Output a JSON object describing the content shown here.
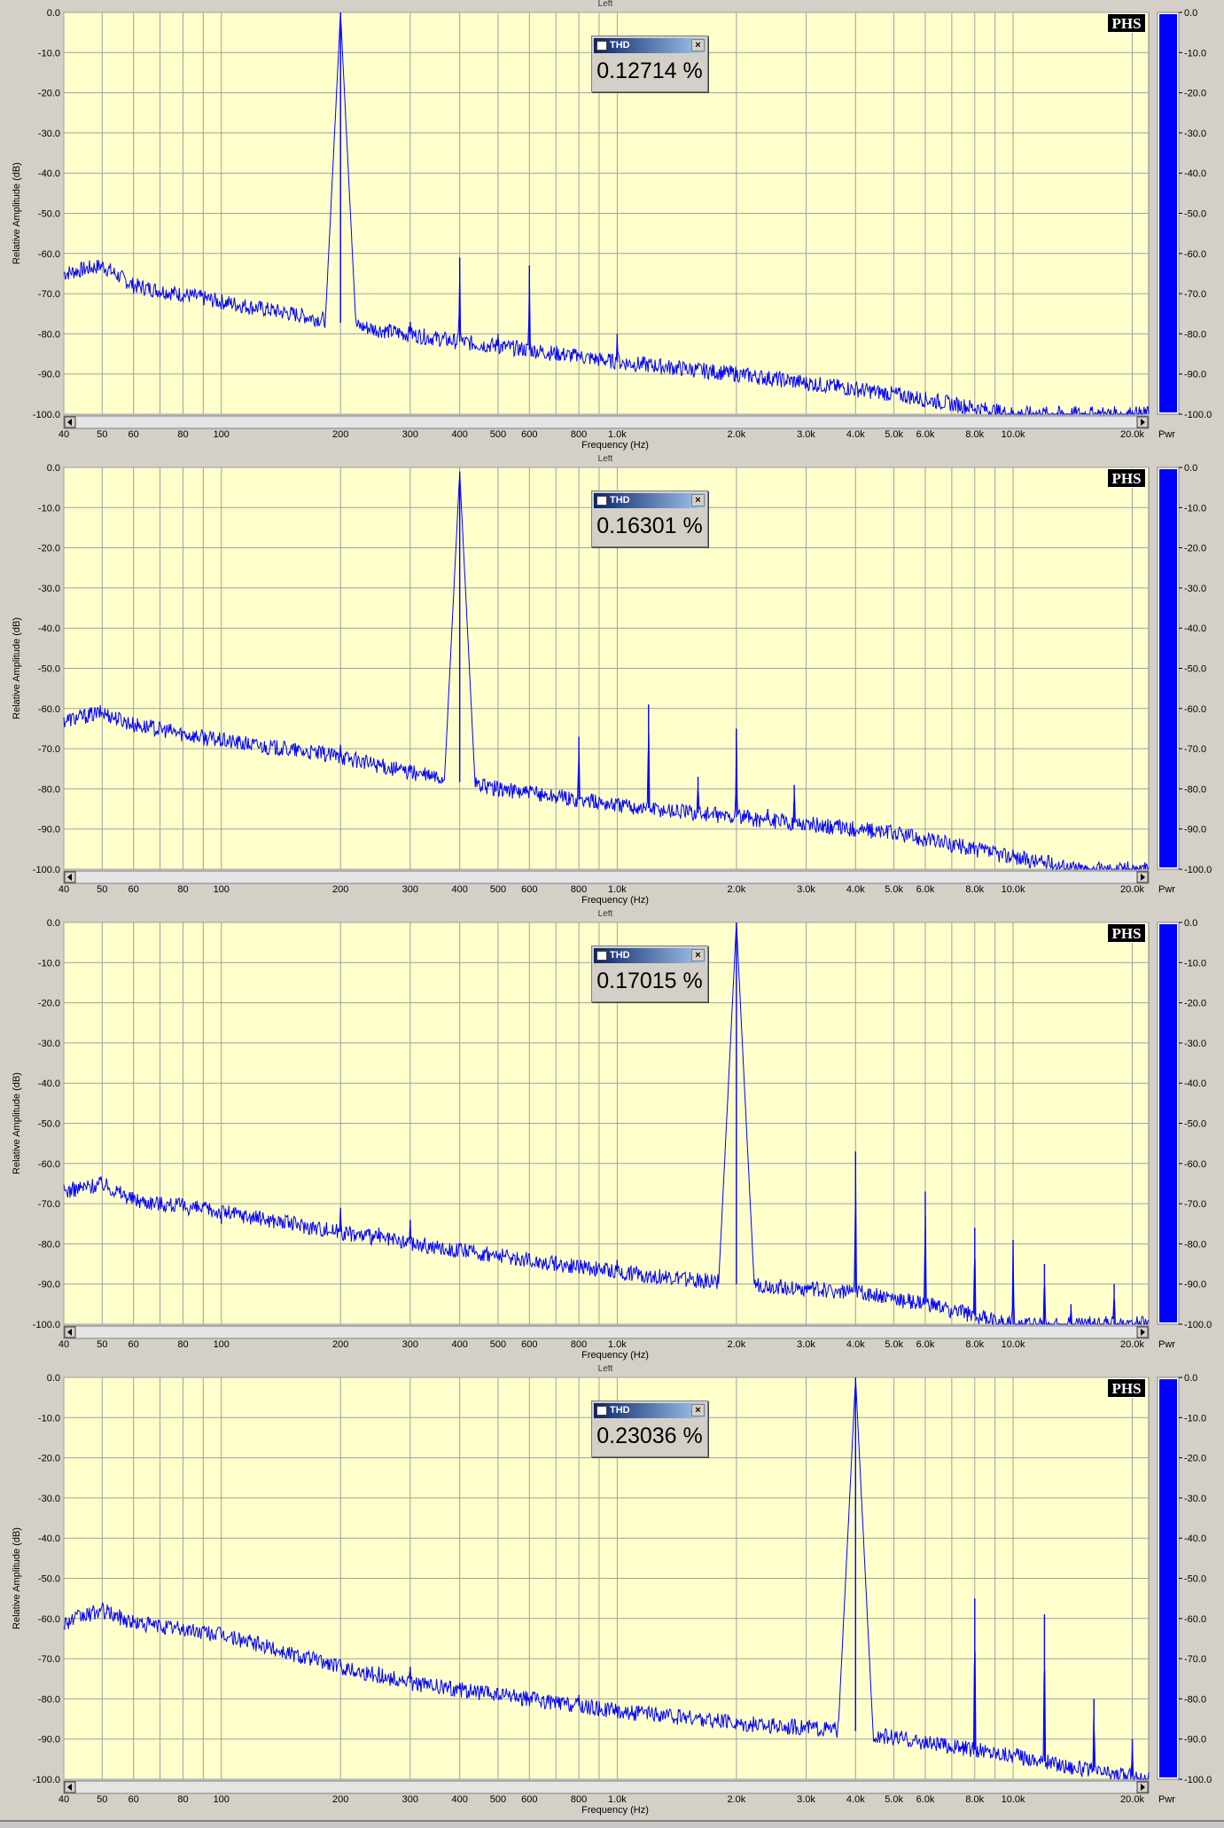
{
  "window": {
    "channel_label": "Left"
  },
  "axes": {
    "ylabel": "Relative Amplitude (dB)",
    "xlabel": "Frequency (Hz)",
    "xlim": [
      40,
      22000
    ],
    "ylim": [
      -100,
      0
    ],
    "yticks": [
      "0.0",
      "-10.0",
      "-20.0",
      "-30.0",
      "-40.0",
      "-50.0",
      "-60.0",
      "-70.0",
      "-80.0",
      "-90.0",
      "-100.0"
    ],
    "xticks": [
      {
        "f": 40,
        "label": "40"
      },
      {
        "f": 50,
        "label": "50"
      },
      {
        "f": 60,
        "label": "60"
      },
      {
        "f": 80,
        "label": "80"
      },
      {
        "f": 100,
        "label": "100"
      },
      {
        "f": 200,
        "label": "200"
      },
      {
        "f": 300,
        "label": "300"
      },
      {
        "f": 400,
        "label": "400"
      },
      {
        "f": 500,
        "label": "500"
      },
      {
        "f": 600,
        "label": "600"
      },
      {
        "f": 800,
        "label": "800"
      },
      {
        "f": 1000,
        "label": "1.0k"
      },
      {
        "f": 2000,
        "label": "2.0k"
      },
      {
        "f": 3000,
        "label": "3.0k"
      },
      {
        "f": 4000,
        "label": "4.0k"
      },
      {
        "f": 5000,
        "label": "5.0k"
      },
      {
        "f": 6000,
        "label": "6.0k"
      },
      {
        "f": 8000,
        "label": "8.0k"
      },
      {
        "f": 10000,
        "label": "10.0k"
      },
      {
        "f": 20000,
        "label": "20.0k"
      }
    ]
  },
  "meter": {
    "label": "Pwr",
    "color": "#0000ff"
  },
  "brand": "PHS",
  "thd_window_title": "THD",
  "colors": {
    "plot_bg": "#ffffcc",
    "trace": "#0000ff",
    "grid": "#a0a0a0"
  },
  "chart_data": [
    {
      "type": "line",
      "thd": "0.12714 %",
      "fundamental": 200,
      "noise_floor": [
        [
          40,
          -65
        ],
        [
          50,
          -63
        ],
        [
          60,
          -68
        ],
        [
          100,
          -72
        ],
        [
          150,
          -75
        ],
        [
          250,
          -79
        ],
        [
          400,
          -82
        ],
        [
          600,
          -84
        ],
        [
          1000,
          -87
        ],
        [
          2000,
          -90
        ],
        [
          5000,
          -95
        ],
        [
          10000,
          -100
        ],
        [
          22000,
          -100
        ]
      ],
      "peaks": [
        [
          200,
          0
        ],
        [
          300,
          -77
        ],
        [
          400,
          -61
        ],
        [
          500,
          -80
        ],
        [
          600,
          -63
        ],
        [
          800,
          -85
        ],
        [
          1000,
          -80
        ]
      ]
    },
    {
      "type": "line",
      "thd": "0.16301 %",
      "fundamental": 400,
      "noise_floor": [
        [
          40,
          -63
        ],
        [
          50,
          -61
        ],
        [
          60,
          -64
        ],
        [
          100,
          -68
        ],
        [
          200,
          -72
        ],
        [
          300,
          -76
        ],
        [
          500,
          -80
        ],
        [
          1000,
          -84
        ],
        [
          2000,
          -87
        ],
        [
          5000,
          -91
        ],
        [
          10000,
          -97
        ],
        [
          15000,
          -100
        ],
        [
          22000,
          -100
        ]
      ],
      "peaks": [
        [
          200,
          -69
        ],
        [
          250,
          -73
        ],
        [
          300,
          -74
        ],
        [
          400,
          -1
        ],
        [
          800,
          -67
        ],
        [
          1200,
          -59
        ],
        [
          1600,
          -77
        ],
        [
          2000,
          -65
        ],
        [
          2400,
          -85
        ],
        [
          2800,
          -79
        ]
      ]
    },
    {
      "type": "line",
      "thd": "0.17015 %",
      "fundamental": 2000,
      "noise_floor": [
        [
          40,
          -67
        ],
        [
          50,
          -65
        ],
        [
          60,
          -69
        ],
        [
          100,
          -72
        ],
        [
          200,
          -77
        ],
        [
          300,
          -80
        ],
        [
          500,
          -83
        ],
        [
          1000,
          -87
        ],
        [
          2000,
          -90
        ],
        [
          4000,
          -92
        ],
        [
          6000,
          -95
        ],
        [
          10000,
          -100
        ],
        [
          22000,
          -100
        ]
      ],
      "peaks": [
        [
          100,
          -75
        ],
        [
          200,
          -71
        ],
        [
          250,
          -76
        ],
        [
          300,
          -74
        ],
        [
          1000,
          -84
        ],
        [
          2000,
          0
        ],
        [
          4000,
          -57
        ],
        [
          6000,
          -67
        ],
        [
          8000,
          -76
        ],
        [
          10000,
          -79
        ],
        [
          12000,
          -85
        ],
        [
          14000,
          -95
        ],
        [
          18000,
          -90
        ]
      ]
    },
    {
      "type": "line",
      "thd": "0.23036 %",
      "fundamental": 4000,
      "noise_floor": [
        [
          40,
          -61
        ],
        [
          50,
          -58
        ],
        [
          60,
          -61
        ],
        [
          100,
          -64
        ],
        [
          200,
          -72
        ],
        [
          300,
          -76
        ],
        [
          500,
          -79
        ],
        [
          1000,
          -83
        ],
        [
          2000,
          -86
        ],
        [
          4000,
          -88
        ],
        [
          6000,
          -91
        ],
        [
          10000,
          -94
        ],
        [
          16000,
          -98
        ],
        [
          22000,
          -100
        ]
      ],
      "peaks": [
        [
          200,
          -71
        ],
        [
          250,
          -72
        ],
        [
          300,
          -72
        ],
        [
          400,
          -76
        ],
        [
          800,
          -79
        ],
        [
          4000,
          0
        ],
        [
          8000,
          -55
        ],
        [
          12000,
          -59
        ],
        [
          16000,
          -80
        ],
        [
          20000,
          -90
        ]
      ]
    }
  ]
}
